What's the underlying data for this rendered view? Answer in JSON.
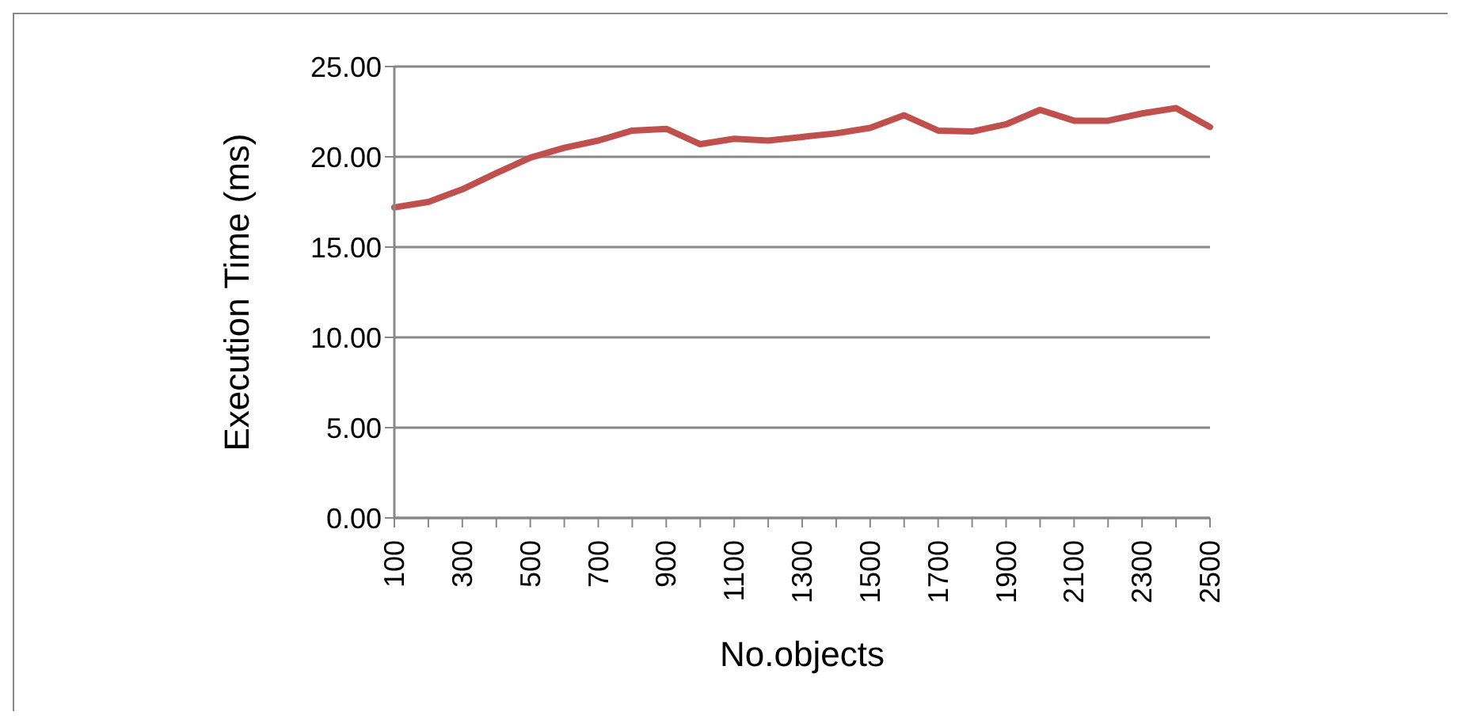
{
  "chart_data": {
    "type": "line",
    "xlabel": "No.objects",
    "ylabel": "Execution  Time (ms)",
    "categories": [
      "100",
      null,
      "300",
      null,
      "500",
      null,
      "700",
      null,
      "900",
      null,
      "1100",
      null,
      "1300",
      null,
      "1500",
      null,
      "1700",
      null,
      "1900",
      null,
      "2100",
      null,
      "2300",
      null,
      "2500"
    ],
    "series": [
      {
        "color": "#c0504d",
        "values": [
          17.2,
          17.5,
          18.2,
          19.1,
          19.95,
          20.5,
          20.9,
          21.45,
          21.55,
          20.7,
          21.0,
          20.9,
          21.1,
          21.3,
          21.6,
          22.3,
          21.45,
          21.4,
          21.8,
          22.6,
          22.0,
          22.0,
          22.4,
          22.7,
          21.65
        ]
      }
    ],
    "ylim": [
      0,
      25
    ],
    "yticks": [
      {
        "value": 0,
        "label": "0.00"
      },
      {
        "value": 5,
        "label": "5.00"
      },
      {
        "value": 10,
        "label": "10.00"
      },
      {
        "value": 15,
        "label": "15.00"
      },
      {
        "value": 20,
        "label": "20.00"
      },
      {
        "value": 25,
        "label": "25.00"
      }
    ],
    "grid": "y",
    "legend": false,
    "marker": "none",
    "line_style": "solid"
  }
}
